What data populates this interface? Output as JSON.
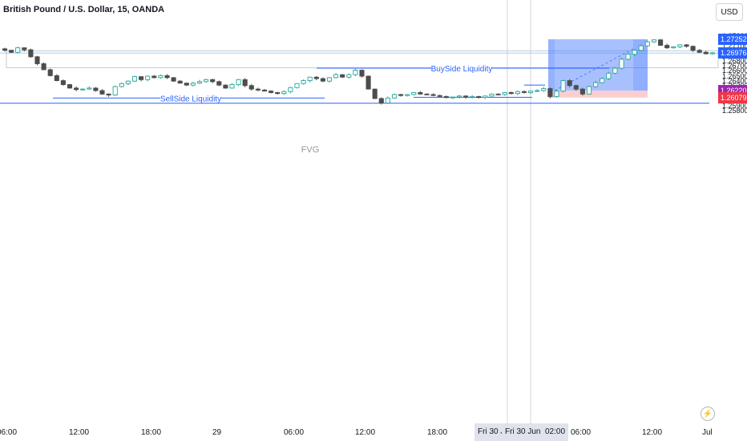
{
  "header": {
    "title": "British Pound / U.S. Dollar, 15, OANDA"
  },
  "currency_button": "USD",
  "flash_icon": "lightning-icon",
  "price_axis": {
    "ticks": [
      "1.27300",
      "1.27200",
      "1.27100",
      "1.27000",
      "1.26900",
      "1.26800",
      "1.26700",
      "1.26600",
      "1.26500",
      "1.26400",
      "1.26300",
      "1.26200",
      "1.26100",
      "1.26000",
      "1.25900",
      "1.25800"
    ]
  },
  "price_labels": [
    {
      "text": "1.27252",
      "color": "#2962ff"
    },
    {
      "text": "1.26976",
      "color": "#2962ff"
    },
    {
      "text": "1.26220",
      "color": "#9c27b0"
    },
    {
      "text": "1.26079",
      "color": "#f23645"
    }
  ],
  "time_axis": {
    "ticks": [
      "06:00",
      "12:00",
      "18:00",
      "29",
      "06:00",
      "12:00",
      "18:00",
      "06:00",
      "12:00",
      "Jul"
    ],
    "highlighted": [
      "Fri 30 J",
      "Fri 30 Jun '23",
      "02:00"
    ]
  },
  "annotations": {
    "fvg": "FVG",
    "buyside": "BuySide Liquidity",
    "sellside": "SellSide Liquidity"
  },
  "chart_data": {
    "type": "candlestick",
    "title": "British Pound / U.S. Dollar, 15, OANDA",
    "symbol": "GBPUSD",
    "ylim": [
      1.2575,
      1.2735
    ],
    "colors": {
      "up": "#26a69a",
      "down": "#4d4d4d",
      "candle_body_up": "#ffffff",
      "long_position_profit": "#2962ff",
      "long_position_loss": "#f23645"
    },
    "close_path": [
      [
        0,
        1.2703
      ],
      [
        1,
        1.2699
      ],
      [
        2,
        1.2708
      ],
      [
        3,
        1.2704
      ],
      [
        4,
        1.269
      ],
      [
        5,
        1.2676
      ],
      [
        6,
        1.2664
      ],
      [
        7,
        1.2652
      ],
      [
        8,
        1.2642
      ],
      [
        9,
        1.2634
      ],
      [
        10,
        1.2627
      ],
      [
        11,
        1.2624
      ],
      [
        12,
        1.2625
      ],
      [
        13,
        1.2627
      ],
      [
        14,
        1.2622
      ],
      [
        15,
        1.2615
      ],
      [
        16,
        1.2613
      ],
      [
        17,
        1.263
      ],
      [
        18,
        1.2636
      ],
      [
        19,
        1.2641
      ],
      [
        20,
        1.265
      ],
      [
        21,
        1.2644
      ],
      [
        22,
        1.2651
      ],
      [
        23,
        1.2648
      ],
      [
        24,
        1.2652
      ],
      [
        25,
        1.2648
      ],
      [
        26,
        1.2641
      ],
      [
        27,
        1.2637
      ],
      [
        28,
        1.2633
      ],
      [
        29,
        1.2637
      ],
      [
        30,
        1.264
      ],
      [
        31,
        1.2644
      ],
      [
        32,
        1.264
      ],
      [
        33,
        1.2633
      ],
      [
        34,
        1.2627
      ],
      [
        35,
        1.2634
      ],
      [
        36,
        1.2644
      ],
      [
        37,
        1.2632
      ],
      [
        38,
        1.2625
      ],
      [
        39,
        1.2623
      ],
      [
        40,
        1.2621
      ],
      [
        41,
        1.2618
      ],
      [
        42,
        1.2616
      ],
      [
        43,
        1.262
      ],
      [
        44,
        1.2628
      ],
      [
        45,
        1.2636
      ],
      [
        46,
        1.2642
      ],
      [
        47,
        1.2649
      ],
      [
        48,
        1.2646
      ],
      [
        49,
        1.2641
      ],
      [
        50,
        1.2648
      ],
      [
        51,
        1.2654
      ],
      [
        52,
        1.2649
      ],
      [
        53,
        1.2654
      ],
      [
        54,
        1.2663
      ],
      [
        55,
        1.2651
      ],
      [
        56,
        1.2625
      ],
      [
        57,
        1.2606
      ],
      [
        58,
        1.2597
      ],
      [
        59,
        1.2607
      ],
      [
        60,
        1.2614
      ],
      [
        61,
        1.2612
      ],
      [
        62,
        1.2614
      ],
      [
        63,
        1.2618
      ],
      [
        64,
        1.2615
      ],
      [
        65,
        1.2614
      ],
      [
        66,
        1.2612
      ],
      [
        67,
        1.261
      ],
      [
        68,
        1.2608
      ],
      [
        69,
        1.2609
      ],
      [
        70,
        1.2611
      ],
      [
        71,
        1.2609
      ],
      [
        72,
        1.261
      ],
      [
        73,
        1.2608
      ],
      [
        74,
        1.2611
      ],
      [
        75,
        1.2615
      ],
      [
        76,
        1.2614
      ],
      [
        77,
        1.2618
      ],
      [
        78,
        1.2616
      ],
      [
        79,
        1.262
      ],
      [
        80,
        1.2618
      ],
      [
        81,
        1.2621
      ],
      [
        82,
        1.2622
      ],
      [
        83,
        1.2626
      ],
      [
        84,
        1.261
      ],
      [
        85,
        1.2621
      ],
      [
        86,
        1.2642
      ],
      [
        87,
        1.2632
      ],
      [
        88,
        1.2625
      ],
      [
        89,
        1.2615
      ],
      [
        90,
        1.263
      ],
      [
        91,
        1.2638
      ],
      [
        92,
        1.2646
      ],
      [
        93,
        1.2657
      ],
      [
        94,
        1.2667
      ],
      [
        95,
        1.2685
      ],
      [
        96,
        1.2695
      ],
      [
        97,
        1.2703
      ],
      [
        98,
        1.2712
      ],
      [
        99,
        1.272
      ],
      [
        100,
        1.2724
      ],
      [
        101,
        1.2713
      ],
      [
        102,
        1.2708
      ],
      [
        103,
        1.271
      ],
      [
        104,
        1.2714
      ],
      [
        105,
        1.2711
      ],
      [
        106,
        1.2703
      ],
      [
        107,
        1.2699
      ],
      [
        108,
        1.2696
      ],
      [
        109,
        1.2698
      ]
    ],
    "horizontal_levels": [
      {
        "name": "BuySide Liquidity",
        "price": 1.2667
      },
      {
        "name": "SellSide Liquidity",
        "price": 1.2607
      },
      {
        "price": 1.25965
      },
      {
        "price": 1.26976
      }
    ],
    "fvg_zone": {
      "label": "FVG",
      "top": 1.2702,
      "bottom": 1.2668
    },
    "long_position": {
      "entry": 1.2622,
      "target": 1.27252,
      "stop": 1.26079
    }
  }
}
